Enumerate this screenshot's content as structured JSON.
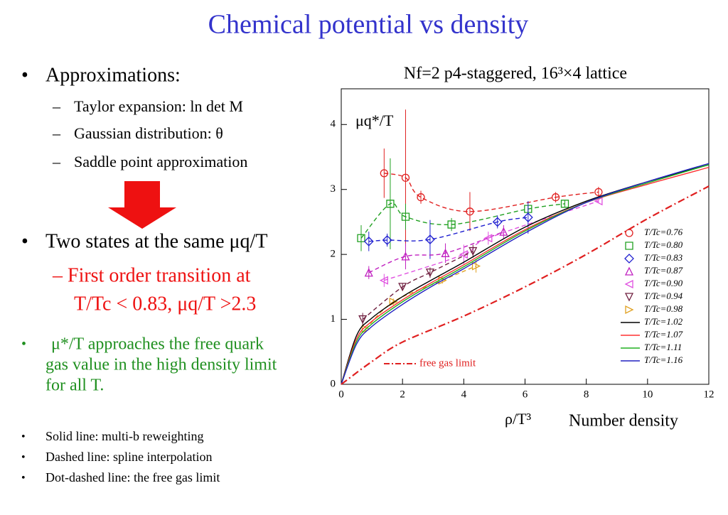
{
  "title": "Chemical potential vs density",
  "bullets": [
    {
      "text": "Approximations:",
      "subs": [
        "Taylor expansion: ln det M",
        "Gaussian distribution: θ",
        "Saddle point approximation"
      ]
    },
    {
      "text": "Two states at the same μq/T",
      "subs": [
        "– First order transition at",
        "T/Tc < 0.83, μq/T >2.3"
      ]
    }
  ],
  "green_bullet": [
    "μ*/T approaches the free quark",
    "gas value in the high density limit",
    "for all T."
  ],
  "notes": [
    "Solid line: multi-b reweighting",
    "Dashed line: spline interpolation",
    "Dot-dashed line: the free gas limit"
  ],
  "chart_data": {
    "type": "line",
    "title": "Nf=2 p4-staggered, 16³×4 lattice",
    "ylabel": "μq*/T",
    "xlabel": "ρ/T³",
    "annotation": "Number density",
    "xlim": [
      0,
      12
    ],
    "xticks": [
      0,
      2,
      4,
      6,
      8,
      10,
      12
    ],
    "ylim": [
      0,
      4.55
    ],
    "yticks": [
      0,
      1,
      2,
      3,
      4
    ],
    "series": [
      {
        "name": "T/Tc=0.76",
        "color": "#e02020",
        "marker": "circle",
        "line": "dashed",
        "x": [
          1.4,
          2.1,
          2.6,
          4.2,
          7.0,
          8.4
        ],
        "values": [
          3.25,
          3.18,
          2.88,
          2.66,
          2.88,
          2.96
        ],
        "errors": [
          0.38,
          1.05,
          0.1,
          0.3,
          0.08,
          0.08
        ]
      },
      {
        "name": "T/Tc=0.80",
        "color": "#20a020",
        "marker": "square",
        "line": "dashed",
        "x": [
          0.65,
          1.6,
          2.1,
          3.6,
          6.1,
          7.3
        ],
        "values": [
          2.25,
          2.78,
          2.58,
          2.46,
          2.7,
          2.78
        ],
        "errors": [
          0.2,
          0.7,
          0.2,
          0.1,
          0.05,
          0.05
        ]
      },
      {
        "name": "T/Tc=0.83",
        "color": "#2020d0",
        "marker": "diamond",
        "line": "dashed",
        "x": [
          0.9,
          1.5,
          2.9,
          5.1,
          6.1
        ],
        "values": [
          2.2,
          2.22,
          2.23,
          2.5,
          2.57
        ],
        "errors": [
          0.15,
          0.1,
          0.3,
          0.1,
          0.25
        ]
      },
      {
        "name": "T/Tc=0.87",
        "color": "#c020c0",
        "marker": "up",
        "line": "dashed",
        "x": [
          0.9,
          2.1,
          3.4,
          5.3
        ],
        "values": [
          1.72,
          1.97,
          2.02,
          2.35
        ],
        "errors": [
          0.1,
          0.2,
          0.15,
          0.1
        ]
      },
      {
        "name": "T/Tc=0.90",
        "color": "#e050e0",
        "marker": "left",
        "line": "dashed",
        "x": [
          1.4,
          4.0,
          4.8,
          8.4
        ],
        "values": [
          1.6,
          2.0,
          2.25,
          2.82
        ],
        "errors": [
          0.1,
          0.15,
          0.1,
          0.03
        ]
      },
      {
        "name": "T/Tc=0.94",
        "color": "#702040",
        "marker": "down",
        "line": "dashed",
        "x": [
          0.7,
          2.0,
          2.9,
          4.3
        ],
        "values": [
          1.0,
          1.5,
          1.72,
          2.05
        ],
        "errors": [
          0.1,
          0.05,
          0.08,
          0.1
        ]
      },
      {
        "name": "T/Tc=0.98",
        "color": "#e0a020",
        "marker": "right",
        "line": "dashed",
        "x": [
          0.8,
          1.7,
          3.3,
          4.4
        ],
        "values": [
          0.85,
          1.27,
          1.6,
          1.82
        ],
        "errors": [
          0.05,
          0.05,
          0.05,
          0.1
        ]
      },
      {
        "name": "T/Tc=1.02",
        "color": "#000000",
        "line": "solid",
        "x": [
          0,
          0.5,
          1,
          2,
          3,
          4,
          6,
          8,
          10,
          12
        ],
        "values": [
          0,
          0.75,
          1.02,
          1.35,
          1.62,
          1.88,
          2.42,
          2.82,
          3.12,
          3.38
        ]
      },
      {
        "name": "T/Tc=1.07",
        "color": "#ff3030",
        "line": "solid",
        "x": [
          0,
          0.5,
          1,
          2,
          3,
          4,
          6,
          8,
          10,
          12
        ],
        "values": [
          0,
          0.7,
          0.97,
          1.3,
          1.58,
          1.84,
          2.38,
          2.8,
          3.08,
          3.34
        ]
      },
      {
        "name": "T/Tc=1.11",
        "color": "#20b020",
        "line": "solid",
        "x": [
          0,
          0.5,
          1,
          2,
          3,
          4,
          6,
          8,
          10,
          12
        ],
        "values": [
          0,
          0.66,
          0.93,
          1.27,
          1.55,
          1.81,
          2.36,
          2.8,
          3.1,
          3.38
        ]
      },
      {
        "name": "T/Tc=1.16",
        "color": "#2020c0",
        "line": "solid",
        "x": [
          0,
          0.5,
          1,
          2,
          3,
          4,
          6,
          8,
          10,
          12
        ],
        "values": [
          0,
          0.62,
          0.89,
          1.23,
          1.52,
          1.78,
          2.33,
          2.8,
          3.12,
          3.4
        ]
      },
      {
        "name": "free gas limit",
        "color": "#e02020",
        "line": "dashdot",
        "x": [
          0,
          1,
          2,
          4,
          6,
          8,
          10,
          12
        ],
        "values": [
          0,
          0.35,
          0.65,
          1.05,
          1.5,
          2.0,
          2.55,
          3.05
        ]
      }
    ]
  }
}
